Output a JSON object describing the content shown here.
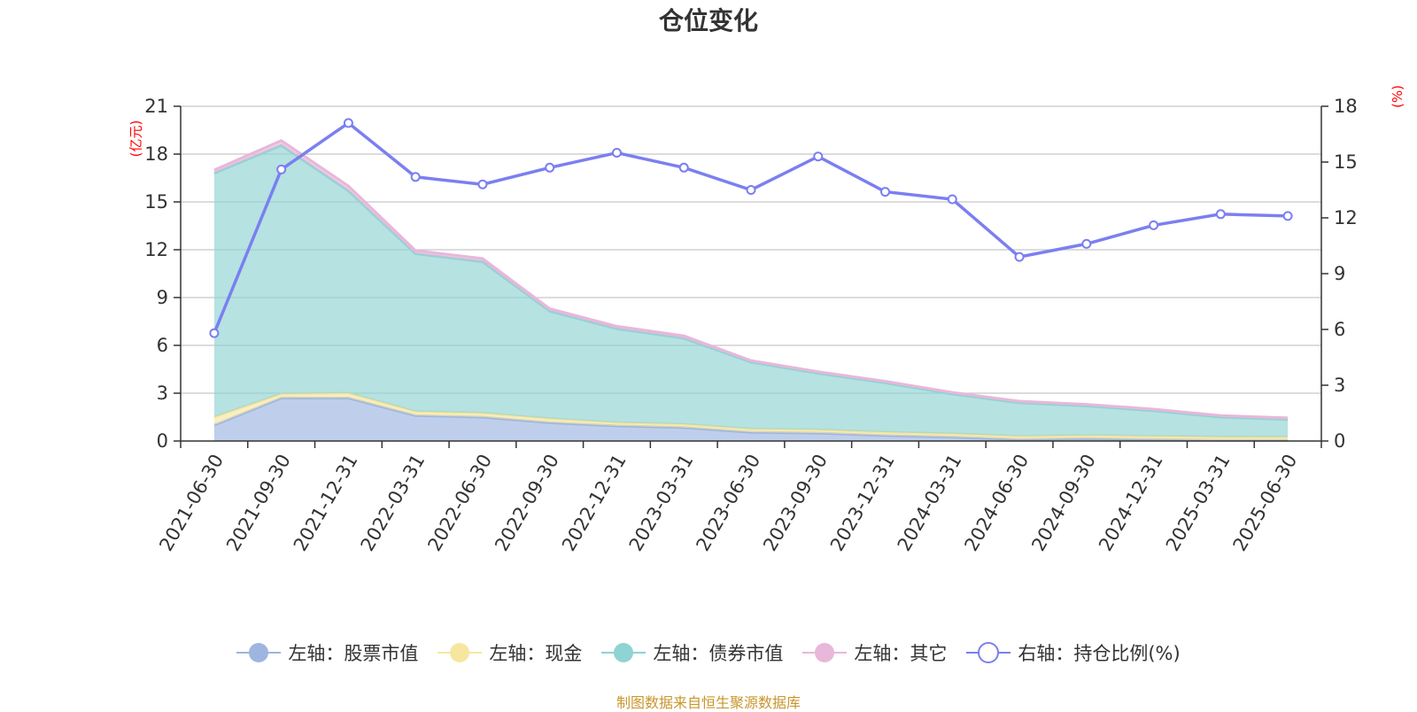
{
  "chart_data": {
    "type": "area",
    "title": "仓位变化",
    "left_axis_unit": "(亿元)",
    "right_axis_unit": "(%)",
    "x": [
      "2021-06-30",
      "2021-09-30",
      "2021-12-31",
      "2022-03-31",
      "2022-06-30",
      "2022-09-30",
      "2022-12-31",
      "2023-03-31",
      "2023-06-30",
      "2023-09-30",
      "2023-12-31",
      "2024-03-31",
      "2024-06-30",
      "2024-09-30",
      "2024-12-31",
      "2025-03-31",
      "2025-06-30"
    ],
    "left_ylim": [
      0,
      21
    ],
    "left_yticks": [
      0,
      3,
      6,
      9,
      12,
      15,
      18,
      21
    ],
    "right_ylim": [
      0,
      18
    ],
    "right_yticks": [
      0,
      3,
      6,
      9,
      12,
      15,
      18
    ],
    "grid": true,
    "legend_position": "bottom-center",
    "series": [
      {
        "name": "左轴：股票市值",
        "axis": "left",
        "stack": true,
        "color": "#9db5e0",
        "values": [
          1.0,
          2.7,
          2.7,
          1.6,
          1.5,
          1.15,
          0.95,
          0.85,
          0.55,
          0.5,
          0.35,
          0.25,
          0.1,
          0.15,
          0.1,
          0.05,
          0.05
        ]
      },
      {
        "name": "左轴：现金",
        "axis": "left",
        "stack": true,
        "color": "#f7e6a0",
        "values": [
          0.5,
          0.25,
          0.3,
          0.25,
          0.25,
          0.25,
          0.2,
          0.2,
          0.2,
          0.2,
          0.2,
          0.2,
          0.2,
          0.2,
          0.2,
          0.2,
          0.2
        ]
      },
      {
        "name": "左轴：债券市值",
        "axis": "left",
        "stack": true,
        "color": "#8fd3d3",
        "values": [
          15.3,
          15.6,
          12.7,
          9.9,
          9.5,
          6.75,
          5.9,
          5.4,
          4.2,
          3.55,
          3.1,
          2.5,
          2.1,
          1.85,
          1.6,
          1.25,
          1.1
        ]
      },
      {
        "name": "左轴：其它",
        "axis": "left",
        "stack": true,
        "color": "#e8b7da",
        "values": [
          0.2,
          0.3,
          0.3,
          0.2,
          0.2,
          0.15,
          0.15,
          0.15,
          0.1,
          0.1,
          0.1,
          0.1,
          0.1,
          0.1,
          0.1,
          0.1,
          0.1
        ]
      },
      {
        "name": "右轴：持仓比例(%)",
        "axis": "right",
        "type": "line",
        "color": "#7b7ff0",
        "values": [
          5.8,
          14.6,
          17.1,
          14.2,
          13.8,
          14.7,
          15.5,
          14.7,
          13.5,
          15.3,
          13.4,
          13.0,
          9.9,
          10.6,
          11.6,
          12.2,
          12.1
        ]
      }
    ]
  },
  "footer": "制图数据来自恒生聚源数据库"
}
